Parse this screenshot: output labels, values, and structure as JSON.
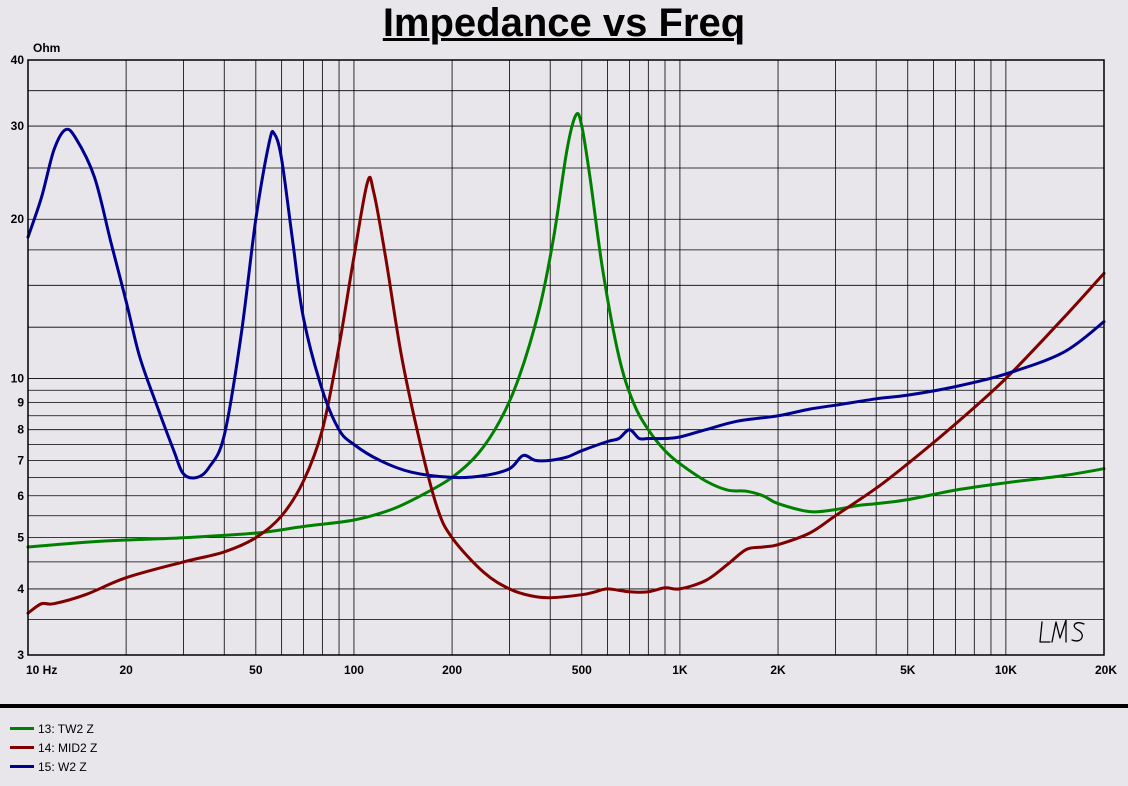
{
  "title": "Impedance vs Freq",
  "chart_data": {
    "type": "line",
    "title": "Impedance vs Freq",
    "ylabel": "Ohm",
    "xlabel": "",
    "xscale": "log",
    "yscale": "log",
    "xlim": [
      10,
      20000
    ],
    "ylim": [
      3,
      40
    ],
    "grid": true,
    "x_tick_labels": [
      {
        "v": 10,
        "label": "10  Hz"
      },
      {
        "v": 20,
        "label": "20"
      },
      {
        "v": 50,
        "label": "50"
      },
      {
        "v": 100,
        "label": "100"
      },
      {
        "v": 200,
        "label": "200"
      },
      {
        "v": 500,
        "label": "500"
      },
      {
        "v": 1000,
        "label": "1K"
      },
      {
        "v": 2000,
        "label": "2K"
      },
      {
        "v": 5000,
        "label": "5K"
      },
      {
        "v": 10000,
        "label": "10K"
      },
      {
        "v": 20000,
        "label": "20K"
      }
    ],
    "y_tick_labels": [
      {
        "v": 3,
        "label": "3"
      },
      {
        "v": 4,
        "label": "4"
      },
      {
        "v": 5,
        "label": "5"
      },
      {
        "v": 6,
        "label": "6"
      },
      {
        "v": 7,
        "label": "7"
      },
      {
        "v": 8,
        "label": "8"
      },
      {
        "v": 9,
        "label": "9"
      },
      {
        "v": 10,
        "label": "10"
      },
      {
        "v": 20,
        "label": "20"
      },
      {
        "v": 30,
        "label": "30"
      },
      {
        "v": 40,
        "label": "40"
      }
    ],
    "series": [
      {
        "name": "13: TW2 Z",
        "color": "#008000",
        "points": [
          [
            10,
            4.8
          ],
          [
            15,
            4.9
          ],
          [
            20,
            4.95
          ],
          [
            30,
            5.0
          ],
          [
            50,
            5.1
          ],
          [
            70,
            5.25
          ],
          [
            100,
            5.4
          ],
          [
            130,
            5.65
          ],
          [
            160,
            6.0
          ],
          [
            200,
            6.5
          ],
          [
            240,
            7.2
          ],
          [
            280,
            8.3
          ],
          [
            320,
            10.0
          ],
          [
            370,
            13.5
          ],
          [
            410,
            18.5
          ],
          [
            450,
            27.0
          ],
          [
            480,
            31.5
          ],
          [
            500,
            30.0
          ],
          [
            530,
            24.0
          ],
          [
            580,
            16.0
          ],
          [
            650,
            11.0
          ],
          [
            720,
            9.0
          ],
          [
            800,
            8.0
          ],
          [
            900,
            7.3
          ],
          [
            1000,
            6.9
          ],
          [
            1200,
            6.4
          ],
          [
            1400,
            6.15
          ],
          [
            1600,
            6.12
          ],
          [
            1800,
            6.0
          ],
          [
            2000,
            5.8
          ],
          [
            2500,
            5.6
          ],
          [
            3000,
            5.65
          ],
          [
            3500,
            5.75
          ],
          [
            4000,
            5.8
          ],
          [
            5000,
            5.9
          ],
          [
            7000,
            6.15
          ],
          [
            10000,
            6.35
          ],
          [
            15000,
            6.55
          ],
          [
            20000,
            6.75
          ]
        ]
      },
      {
        "name": "14: MID2 Z",
        "color": "#800000",
        "points": [
          [
            10,
            3.6
          ],
          [
            11,
            3.75
          ],
          [
            12,
            3.75
          ],
          [
            15,
            3.9
          ],
          [
            20,
            4.2
          ],
          [
            30,
            4.5
          ],
          [
            40,
            4.7
          ],
          [
            50,
            5.0
          ],
          [
            60,
            5.5
          ],
          [
            70,
            6.4
          ],
          [
            80,
            8.0
          ],
          [
            90,
            11.5
          ],
          [
            100,
            17.0
          ],
          [
            110,
            23.5
          ],
          [
            115,
            22.5
          ],
          [
            125,
            17.0
          ],
          [
            140,
            11.0
          ],
          [
            160,
            7.5
          ],
          [
            180,
            5.7
          ],
          [
            200,
            5.0
          ],
          [
            250,
            4.3
          ],
          [
            300,
            4.0
          ],
          [
            350,
            3.88
          ],
          [
            400,
            3.85
          ],
          [
            500,
            3.9
          ],
          [
            550,
            3.95
          ],
          [
            600,
            4.0
          ],
          [
            700,
            3.95
          ],
          [
            800,
            3.95
          ],
          [
            900,
            4.02
          ],
          [
            1000,
            4.0
          ],
          [
            1200,
            4.15
          ],
          [
            1400,
            4.45
          ],
          [
            1600,
            4.75
          ],
          [
            1800,
            4.8
          ],
          [
            2000,
            4.85
          ],
          [
            2500,
            5.1
          ],
          [
            3000,
            5.5
          ],
          [
            4000,
            6.2
          ],
          [
            5000,
            6.9
          ],
          [
            7000,
            8.2
          ],
          [
            10000,
            10.0
          ],
          [
            15000,
            13.0
          ],
          [
            20000,
            15.8
          ]
        ]
      },
      {
        "name": "15: W2 Z",
        "color": "#000090",
        "points": [
          [
            10,
            18.5
          ],
          [
            11,
            22.0
          ],
          [
            12,
            27.0
          ],
          [
            13,
            29.5
          ],
          [
            14,
            28.5
          ],
          [
            16,
            24.0
          ],
          [
            18,
            18.0
          ],
          [
            20,
            14.0
          ],
          [
            22,
            11.0
          ],
          [
            25,
            8.8
          ],
          [
            28,
            7.3
          ],
          [
            30,
            6.6
          ],
          [
            33,
            6.5
          ],
          [
            36,
            6.8
          ],
          [
            40,
            7.8
          ],
          [
            45,
            12.0
          ],
          [
            50,
            20.0
          ],
          [
            55,
            28.0
          ],
          [
            57,
            29.0
          ],
          [
            60,
            26.0
          ],
          [
            65,
            18.0
          ],
          [
            70,
            13.0
          ],
          [
            80,
            9.5
          ],
          [
            90,
            8.0
          ],
          [
            100,
            7.5
          ],
          [
            120,
            7.0
          ],
          [
            150,
            6.65
          ],
          [
            200,
            6.5
          ],
          [
            250,
            6.55
          ],
          [
            300,
            6.75
          ],
          [
            330,
            7.15
          ],
          [
            360,
            7.0
          ],
          [
            400,
            7.0
          ],
          [
            450,
            7.1
          ],
          [
            500,
            7.3
          ],
          [
            600,
            7.6
          ],
          [
            650,
            7.7
          ],
          [
            700,
            8.0
          ],
          [
            750,
            7.7
          ],
          [
            800,
            7.7
          ],
          [
            900,
            7.7
          ],
          [
            1000,
            7.75
          ],
          [
            1200,
            8.0
          ],
          [
            1500,
            8.3
          ],
          [
            2000,
            8.5
          ],
          [
            2500,
            8.75
          ],
          [
            3000,
            8.9
          ],
          [
            4000,
            9.15
          ],
          [
            5000,
            9.3
          ],
          [
            7000,
            9.65
          ],
          [
            10000,
            10.2
          ],
          [
            15000,
            11.2
          ],
          [
            20000,
            12.8
          ]
        ]
      }
    ],
    "legend": {
      "position": "bottom-left"
    }
  },
  "watermark": "LMS"
}
